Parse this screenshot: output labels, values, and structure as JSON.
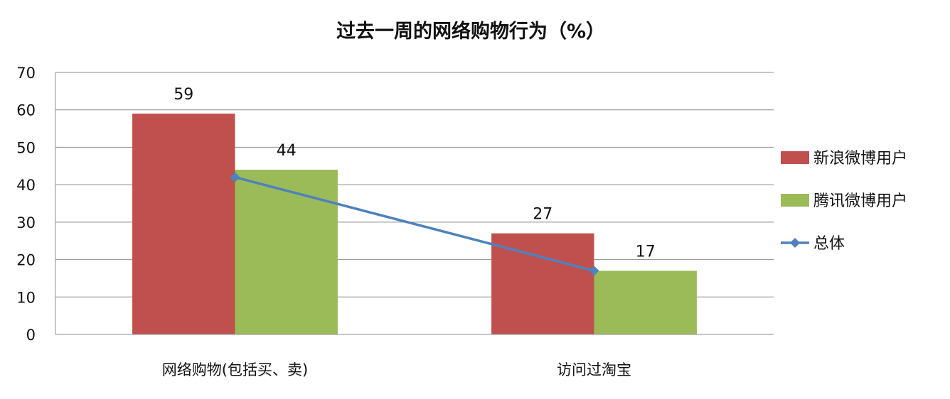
{
  "chart_data": {
    "type": "bar",
    "title": "过去一周的网络购物行为（%）",
    "categories": [
      "网络购物(包括买、卖)",
      "访问过淘宝"
    ],
    "series": [
      {
        "name": "新浪微博用户",
        "type": "bar",
        "color": "#C0504D",
        "values": [
          59,
          27
        ],
        "data_labels": [
          "59",
          "27"
        ]
      },
      {
        "name": "腾讯微博用户",
        "type": "bar",
        "color": "#9BBB59",
        "values": [
          44,
          17
        ],
        "data_labels": [
          "44",
          "17"
        ]
      },
      {
        "name": "总体",
        "type": "line",
        "marker": "diamond",
        "color": "#4F81BD",
        "values": [
          42,
          17
        ]
      }
    ],
    "y_ticks": [
      "0",
      "10",
      "20",
      "30",
      "40",
      "50",
      "60",
      "70"
    ],
    "ylim": [
      0,
      70
    ],
    "grid": true,
    "legend": "right"
  }
}
